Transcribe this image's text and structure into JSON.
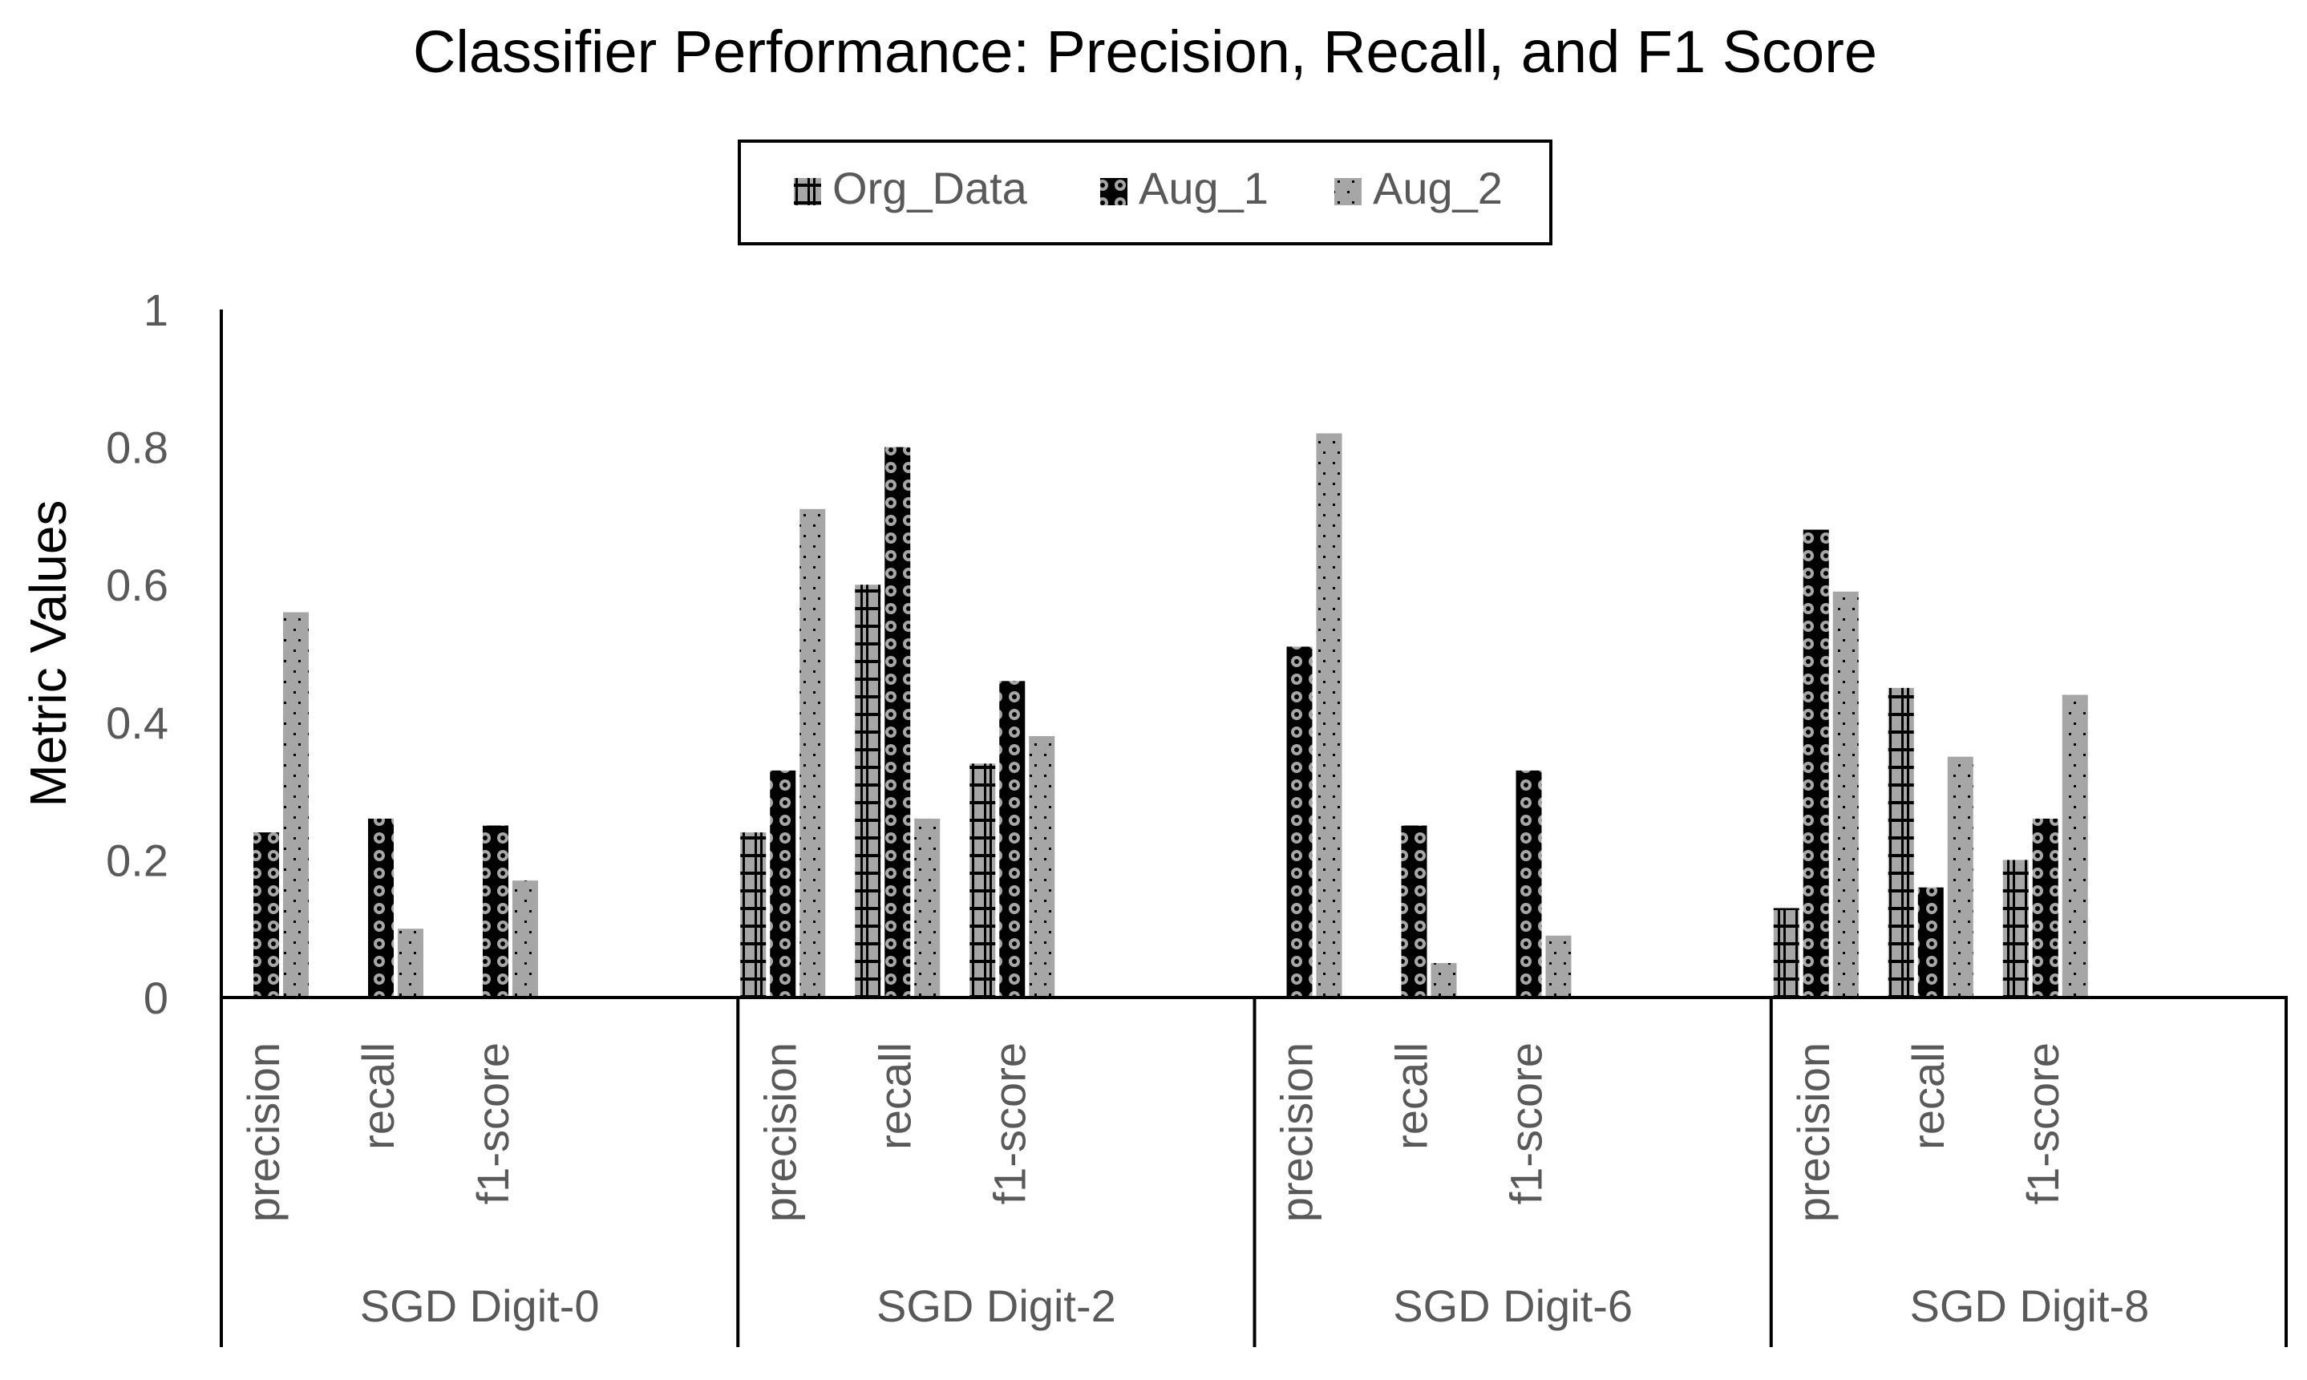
{
  "chart_data": {
    "type": "bar",
    "title": "Classifier Performance: Precision, Recall, and F1 Score",
    "ylabel": "Metric Values",
    "xlabel": "",
    "ylim": [
      0,
      1
    ],
    "yticks": [
      "0",
      "0.2",
      "0.4",
      "0.6",
      "0.8",
      "1"
    ],
    "grid": false,
    "legend_position": "top-center",
    "groups": [
      "SGD Digit-0",
      "SGD Digit-2",
      "SGD Digit-6",
      "SGD Digit-8"
    ],
    "categories": [
      "precision",
      "recall",
      "f1-score"
    ],
    "series": [
      {
        "name": "Org_Data",
        "pattern": "h-bars",
        "values": [
          [
            0,
            0,
            0
          ],
          [
            0.24,
            0.6,
            0.34
          ],
          [
            0,
            0,
            0
          ],
          [
            0.13,
            0.45,
            0.2
          ]
        ]
      },
      {
        "name": "Aug_1",
        "pattern": "circles",
        "values": [
          [
            0.24,
            0.26,
            0.25
          ],
          [
            0.33,
            0.8,
            0.46
          ],
          [
            0.51,
            0.25,
            0.33
          ],
          [
            0.68,
            0.16,
            0.26
          ]
        ]
      },
      {
        "name": "Aug_2",
        "pattern": "dots",
        "values": [
          [
            0.56,
            0.1,
            0.17
          ],
          [
            0.71,
            0.26,
            0.38
          ],
          [
            0.82,
            0.05,
            0.09
          ],
          [
            0.59,
            0.35,
            0.44
          ]
        ]
      }
    ],
    "colors": {
      "text": "#595959",
      "title": "#000000",
      "axis": "#000000",
      "bar_gray": "#a6a6a6",
      "pattern_dark": "#000000"
    }
  }
}
